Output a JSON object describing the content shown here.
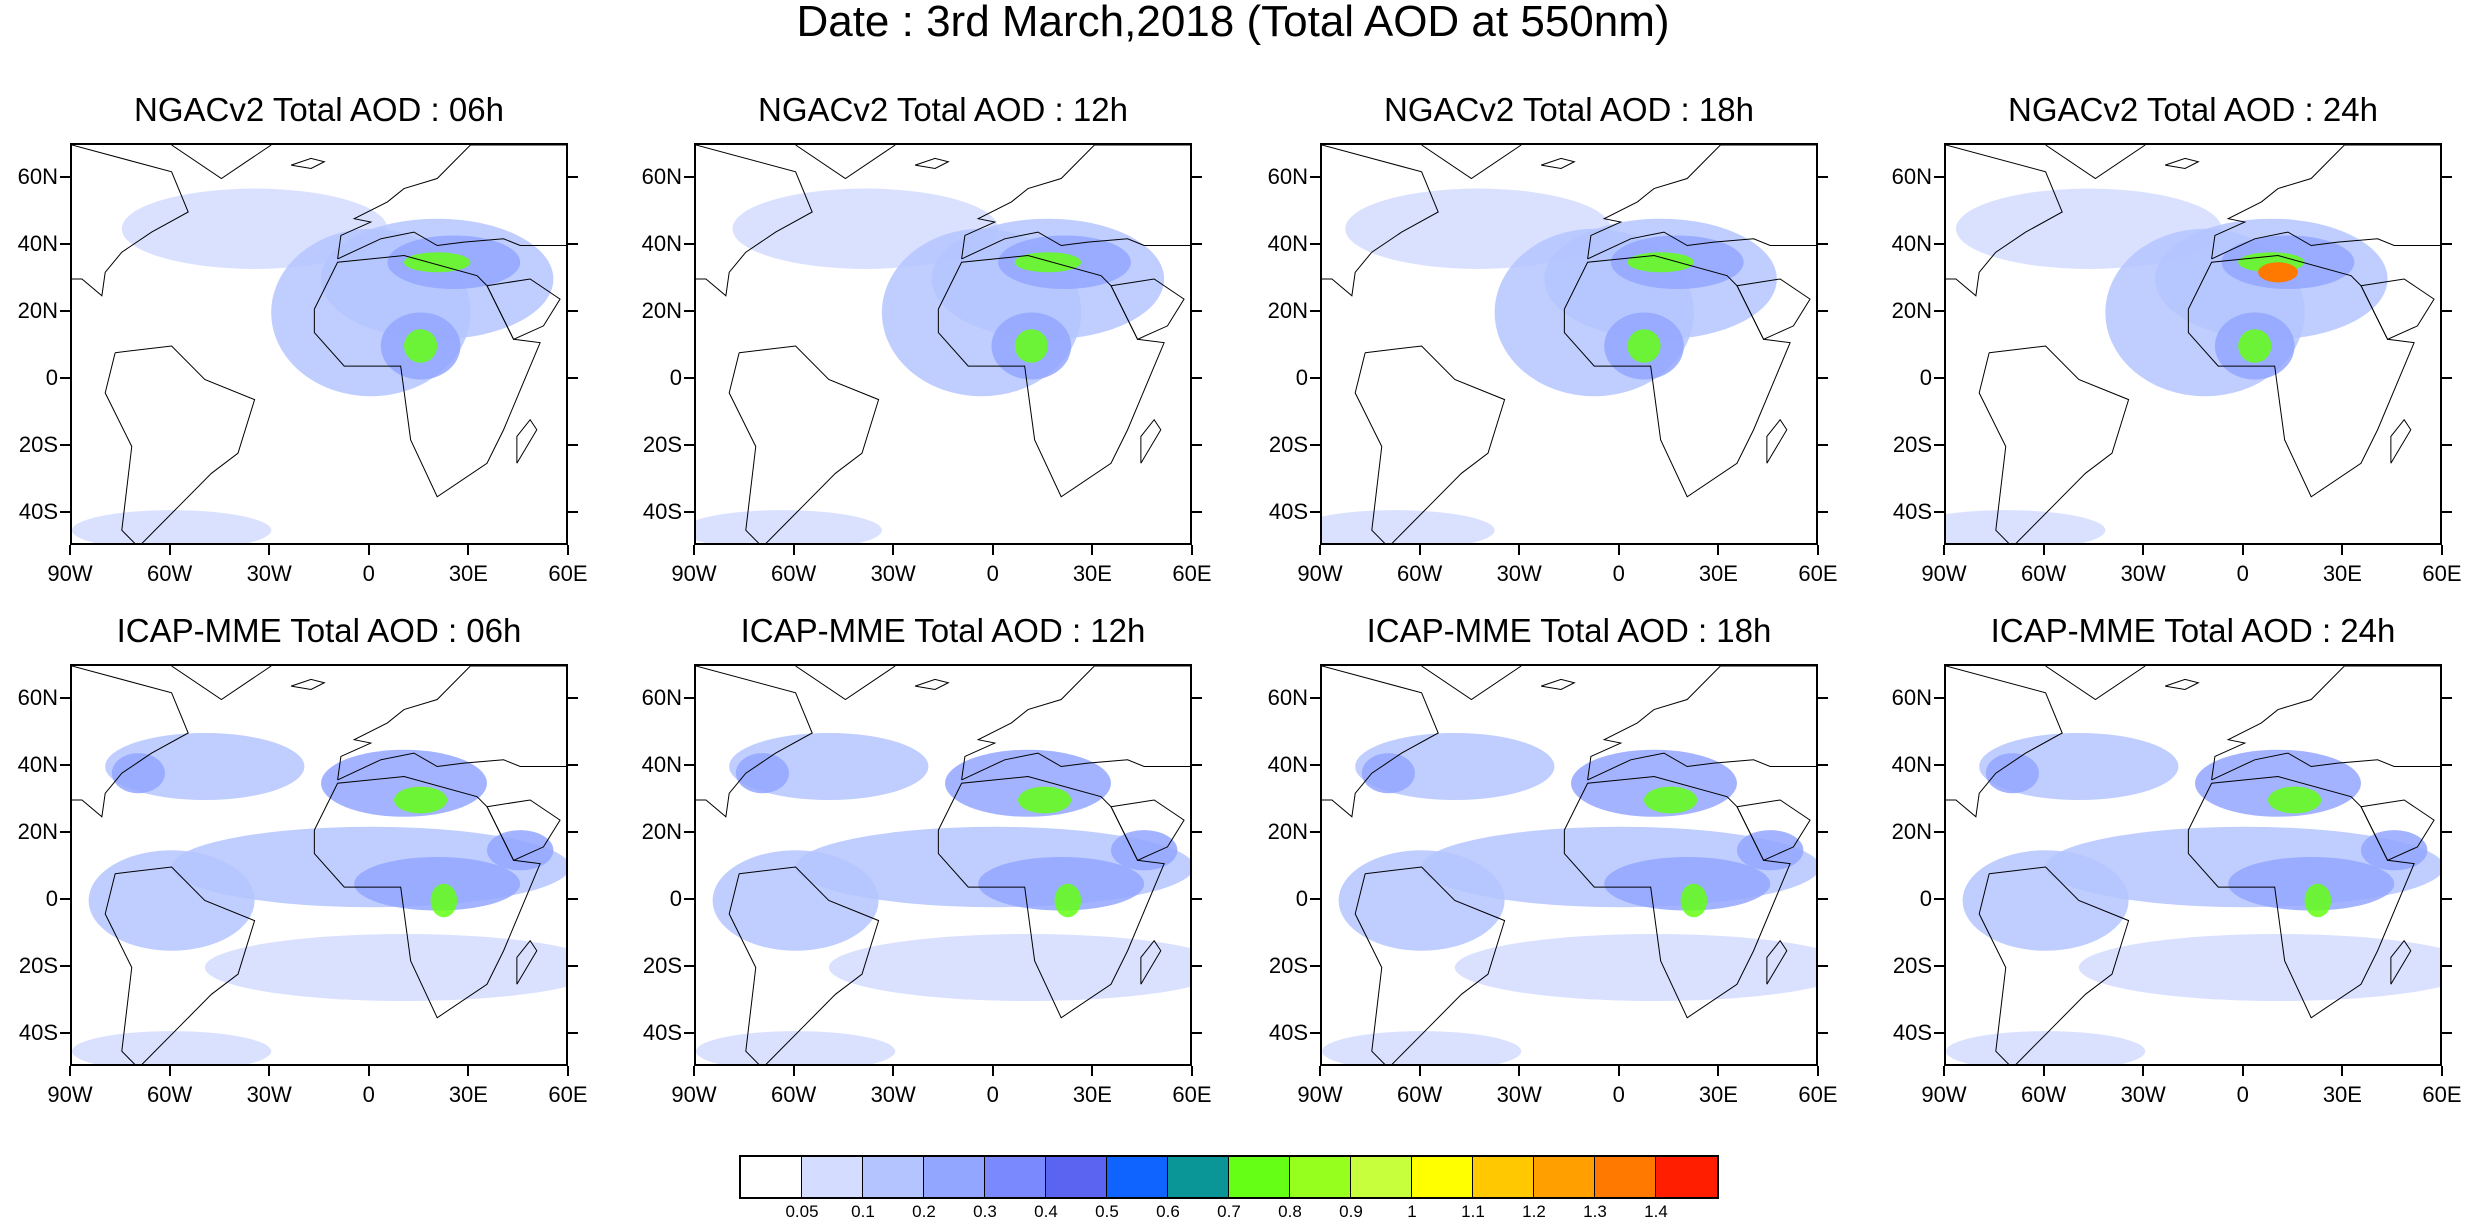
{
  "figure": {
    "title": "Date : 3rd March,2018 (Total AOD at 550nm)"
  },
  "panels": [
    {
      "title": "NGACv2 Total AOD : 06h",
      "model": "NGACv2",
      "lead": "06h"
    },
    {
      "title": "NGACv2 Total AOD : 12h",
      "model": "NGACv2",
      "lead": "12h"
    },
    {
      "title": "NGACv2 Total AOD : 18h",
      "model": "NGACv2",
      "lead": "18h"
    },
    {
      "title": "NGACv2 Total AOD : 24h",
      "model": "NGACv2",
      "lead": "24h"
    },
    {
      "title": "ICAP-MME Total AOD : 06h",
      "model": "ICAP-MME",
      "lead": "06h"
    },
    {
      "title": "ICAP-MME Total AOD : 12h",
      "model": "ICAP-MME",
      "lead": "12h"
    },
    {
      "title": "ICAP-MME Total AOD : 18h",
      "model": "ICAP-MME",
      "lead": "18h"
    },
    {
      "title": "ICAP-MME Total AOD : 24h",
      "model": "ICAP-MME",
      "lead": "24h"
    }
  ],
  "axes": {
    "lat_labels": [
      "60N",
      "40N",
      "20N",
      "0",
      "20S",
      "40S"
    ],
    "lon_labels": [
      "90W",
      "60W",
      "30W",
      "0",
      "30E",
      "60E"
    ]
  },
  "colorbar": {
    "labels": [
      "0.05",
      "0.1",
      "0.2",
      "0.3",
      "0.4",
      "0.5",
      "0.6",
      "0.7",
      "0.8",
      "0.9",
      "1",
      "1.1",
      "1.2",
      "1.3",
      "1.4"
    ],
    "colors": [
      "#ffffff",
      "#d4dcff",
      "#b4c4ff",
      "#93a6ff",
      "#7b89ff",
      "#5a64f0",
      "#0f64ff",
      "#0a9696",
      "#64ff14",
      "#96ff1e",
      "#c8ff3c",
      "#ffff00",
      "#ffc800",
      "#ffa000",
      "#ff7800",
      "#ff1e00"
    ]
  },
  "map_features": {
    "ocean_background_color": "#ffffff",
    "aod_colors": {
      "haze": "#d4dcff",
      "light": "#b4c4ff",
      "moderate": "#93a6ff",
      "heavy": "#7b89ff",
      "plume": "#64ff14",
      "core": "#ffff00",
      "peak": "#ff7800"
    }
  }
}
